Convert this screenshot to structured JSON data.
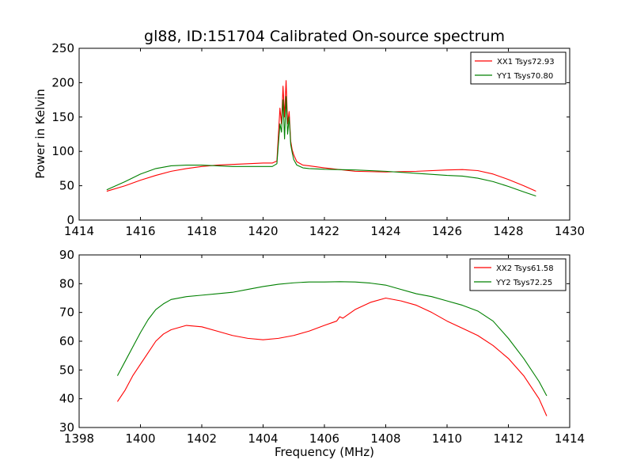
{
  "chart_data": [
    {
      "type": "line",
      "title": "gl88, ID:151704 Calibrated On-source spectrum",
      "xlabel": "",
      "ylabel": "Power in Kelvin",
      "xlim": [
        1414,
        1430
      ],
      "ylim": [
        0,
        250
      ],
      "xticks": [
        "1414",
        "1416",
        "1418",
        "1420",
        "1422",
        "1424",
        "1426",
        "1428",
        "1430"
      ],
      "yticks": [
        "0",
        "50",
        "100",
        "150",
        "200",
        "250"
      ],
      "legend_position": "top-right",
      "series": [
        {
          "name": "XX1 Tsys72.93",
          "color": "#ff0000",
          "x": [
            1414.9,
            1415.5,
            1416,
            1416.5,
            1417,
            1417.5,
            1418,
            1418.5,
            1419,
            1419.5,
            1420,
            1420.3,
            1420.45,
            1420.55,
            1420.6,
            1420.65,
            1420.7,
            1420.75,
            1420.8,
            1420.85,
            1420.9,
            1420.95,
            1421.0,
            1421.1,
            1421.3,
            1421.5,
            1422,
            1423,
            1424,
            1425,
            1426,
            1426.5,
            1427,
            1427.5,
            1428,
            1428.5,
            1428.9
          ],
          "y": [
            42,
            50,
            58,
            65,
            71,
            75,
            78,
            80,
            81,
            82,
            83,
            83,
            86,
            163,
            140,
            195,
            150,
            203,
            140,
            158,
            115,
            102,
            95,
            85,
            80,
            79,
            76,
            71,
            70,
            71,
            73,
            73.5,
            72,
            67,
            59,
            50,
            42
          ]
        },
        {
          "name": "YY1 Tsys70.80",
          "color": "#008000",
          "x": [
            1414.9,
            1415.5,
            1416,
            1416.5,
            1417,
            1417.5,
            1418,
            1418.5,
            1419,
            1419.5,
            1420,
            1420.3,
            1420.45,
            1420.55,
            1420.6,
            1420.65,
            1420.7,
            1420.75,
            1420.8,
            1420.85,
            1420.9,
            1420.95,
            1421.0,
            1421.1,
            1421.3,
            1421.5,
            1422,
            1423,
            1424,
            1425,
            1426,
            1426.5,
            1427,
            1427.5,
            1428,
            1428.5,
            1428.9
          ],
          "y": [
            44,
            56,
            67,
            75,
            79,
            80,
            80,
            79,
            78,
            78,
            78,
            78,
            82,
            140,
            128,
            175,
            118,
            180,
            125,
            150,
            110,
            98,
            88,
            80,
            76,
            75,
            74,
            73,
            71,
            68,
            65,
            64,
            61,
            56,
            49,
            41,
            35
          ]
        }
      ]
    },
    {
      "type": "line",
      "title": "",
      "xlabel": "Frequency (MHz)",
      "ylabel": "",
      "xlim": [
        1398,
        1414
      ],
      "ylim": [
        30,
        90
      ],
      "xticks": [
        "1398",
        "1400",
        "1402",
        "1404",
        "1406",
        "1408",
        "1410",
        "1412",
        "1414"
      ],
      "yticks": [
        "30",
        "40",
        "50",
        "60",
        "70",
        "80",
        "90"
      ],
      "legend_position": "top-right",
      "series": [
        {
          "name": "XX2 Tsys61.58",
          "color": "#ff0000",
          "x": [
            1399.25,
            1399.5,
            1399.75,
            1400,
            1400.25,
            1400.5,
            1400.75,
            1401,
            1401.5,
            1402,
            1402.5,
            1403,
            1403.5,
            1404,
            1404.5,
            1405,
            1405.5,
            1406,
            1406.4,
            1406.5,
            1406.6,
            1407,
            1407.5,
            1408,
            1408.5,
            1409,
            1409.5,
            1410,
            1410.5,
            1411,
            1411.5,
            1412,
            1412.5,
            1413,
            1413.25
          ],
          "y": [
            39,
            43,
            48,
            52,
            56,
            60,
            62.5,
            64,
            65.5,
            65,
            63.5,
            62,
            61,
            60.5,
            61,
            62,
            63.5,
            65.5,
            67,
            68.5,
            68,
            71,
            73.5,
            75,
            74,
            72.5,
            70,
            67,
            64.5,
            62,
            58.5,
            54,
            48,
            40,
            34
          ]
        },
        {
          "name": "YY2 Tsys72.25",
          "color": "#008000",
          "x": [
            1399.25,
            1399.5,
            1399.75,
            1400,
            1400.25,
            1400.5,
            1400.75,
            1401,
            1401.5,
            1402,
            1402.5,
            1403,
            1403.5,
            1404,
            1404.5,
            1405,
            1405.5,
            1406,
            1406.5,
            1407,
            1407.5,
            1408,
            1408.5,
            1409,
            1409.5,
            1410,
            1410.5,
            1411,
            1411.5,
            1412,
            1412.5,
            1413,
            1413.25
          ],
          "y": [
            48,
            53,
            58,
            63,
            67.5,
            71,
            73,
            74.5,
            75.5,
            76,
            76.5,
            77,
            78,
            79,
            79.8,
            80.3,
            80.6,
            80.6,
            80.7,
            80.6,
            80.2,
            79.5,
            78,
            76.5,
            75.5,
            74,
            72.5,
            70.5,
            67,
            61,
            54,
            46,
            41
          ]
        }
      ]
    }
  ]
}
